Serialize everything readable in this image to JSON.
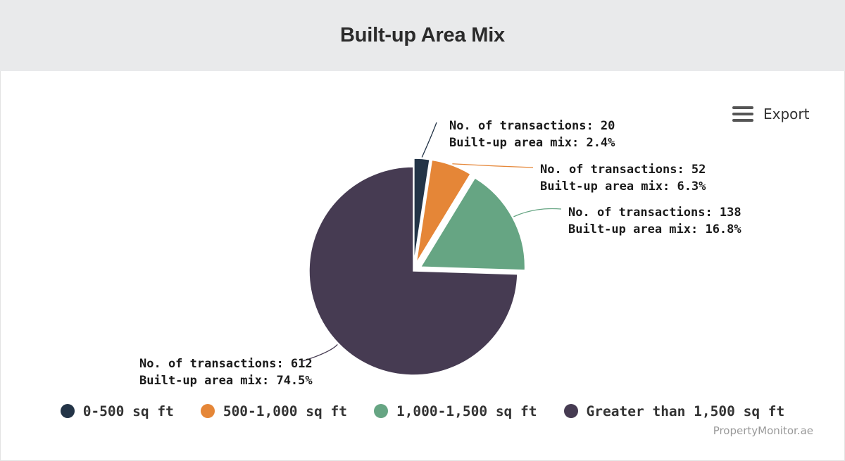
{
  "header": {
    "title": "Built-up Area Mix"
  },
  "toolbar": {
    "export_label": "Export",
    "menu_icon": "hamburger-menu-icon"
  },
  "chart_data": {
    "type": "pie",
    "title": "Built-up Area Mix",
    "legend_position": "bottom",
    "slices": [
      {
        "name": "0-500 sq ft",
        "transactions": 20,
        "percent": 2.4,
        "color": "#233447",
        "label_line1": "No. of transactions: 20",
        "label_line2": "Built-up area mix: 2.4%"
      },
      {
        "name": "500-1,000 sq ft",
        "transactions": 52,
        "percent": 6.3,
        "color": "#e58637",
        "label_line1": "No. of transactions: 52",
        "label_line2": "Built-up area mix: 6.3%"
      },
      {
        "name": "1,000-1,500 sq ft",
        "transactions": 138,
        "percent": 16.8,
        "color": "#66a583",
        "label_line1": "No. of transactions: 138",
        "label_line2": "Built-up area mix: 16.8%"
      },
      {
        "name": "Greater than 1,500 sq ft",
        "transactions": 612,
        "percent": 74.5,
        "color": "#463b52",
        "label_line1": "No. of transactions: 612",
        "label_line2": "Built-up area mix: 74.5%"
      }
    ]
  },
  "footer": {
    "credit": "PropertyMonitor.ae"
  }
}
